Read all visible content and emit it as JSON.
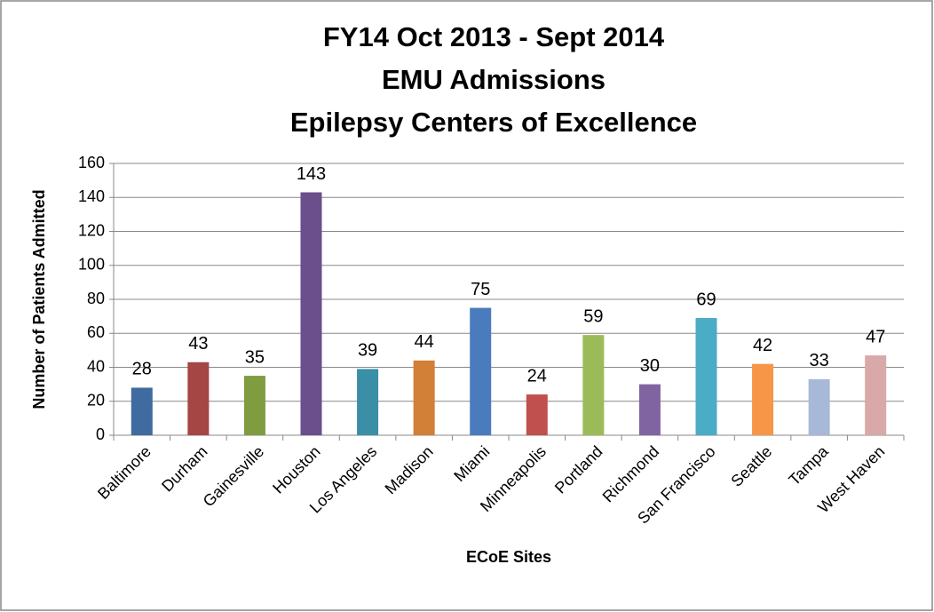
{
  "chart_data": {
    "type": "bar",
    "title": [
      "FY14 Oct 2013 - Sept 2014",
      "EMU Admissions",
      "Epilepsy Centers of Excellence"
    ],
    "x_label": "ECoE Sites",
    "y_label": "Number of Patients Admitted",
    "categories": [
      "Baltimore",
      "Durham",
      "Gainesville",
      "Houston",
      "Los Angeles",
      "Madison",
      "Miami",
      "Minneapolis",
      "Portland",
      "Richmond",
      "San Francisco",
      "Seattle",
      "Tampa",
      "West Haven"
    ],
    "values": [
      28,
      43,
      35,
      143,
      39,
      44,
      75,
      24,
      59,
      30,
      69,
      42,
      33,
      47
    ],
    "colors": [
      "#3f6ba0",
      "#a54544",
      "#7f9c41",
      "#6a4f8c",
      "#3a8fa7",
      "#d27f37",
      "#4a7bbd",
      "#c0504d",
      "#9bbb59",
      "#8064a2",
      "#4bacc6",
      "#f79646",
      "#a8b8d8",
      "#d9a8a8"
    ],
    "ylim": [
      0,
      160
    ],
    "yticks": [
      0,
      20,
      40,
      60,
      80,
      100,
      120,
      140,
      160
    ],
    "grid": true
  }
}
